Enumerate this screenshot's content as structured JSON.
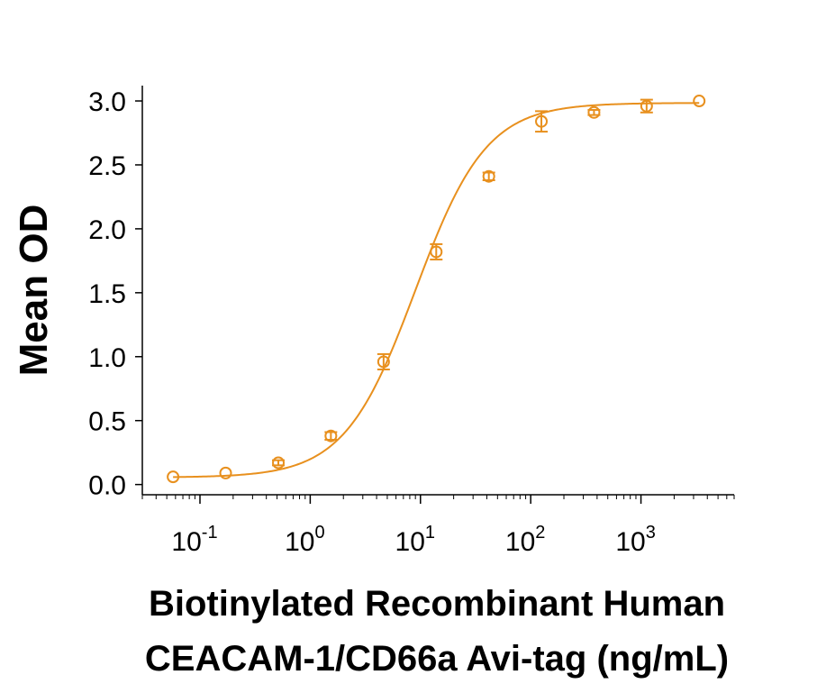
{
  "chart_data": {
    "type": "scatter",
    "xlabel_lines": [
      "Biotinylated Recombinant Human",
      "CEACAM-1/CD66a Avi-tag (ng/mL)"
    ],
    "ylabel": "Mean OD",
    "x_scale": "log",
    "xlim": [
      0.03,
      7000
    ],
    "ylim": [
      -0.08,
      3.12
    ],
    "y_ticks": [
      0.0,
      0.5,
      1.0,
      1.5,
      2.0,
      2.5,
      3.0
    ],
    "y_tick_labels": [
      "0.0",
      "0.5",
      "1.0",
      "1.5",
      "2.0",
      "2.5",
      "3.0"
    ],
    "x_ticks": [
      0.1,
      1,
      10,
      100,
      1000
    ],
    "x_tick_labels": [
      {
        "base": "10",
        "exp": "-1"
      },
      {
        "base": "10",
        "exp": "0"
      },
      {
        "base": "10",
        "exp": "1"
      },
      {
        "base": "10",
        "exp": "2"
      },
      {
        "base": "10",
        "exp": "3"
      }
    ],
    "series": [
      {
        "color": "#E8901E",
        "x": [
          0.057,
          0.171,
          0.514,
          1.54,
          4.63,
          13.9,
          41.7,
          125,
          375,
          1125,
          3375
        ],
        "y": [
          0.06,
          0.09,
          0.17,
          0.38,
          0.96,
          1.82,
          2.41,
          2.84,
          2.91,
          2.96,
          3.0
        ],
        "err": [
          0.0,
          0.0,
          0.02,
          0.03,
          0.06,
          0.06,
          0.03,
          0.08,
          0.02,
          0.05,
          0.0
        ]
      }
    ],
    "fit": {
      "bottom": 0.055,
      "top": 2.985,
      "ec50": 9.0,
      "hill": 1.35
    }
  }
}
